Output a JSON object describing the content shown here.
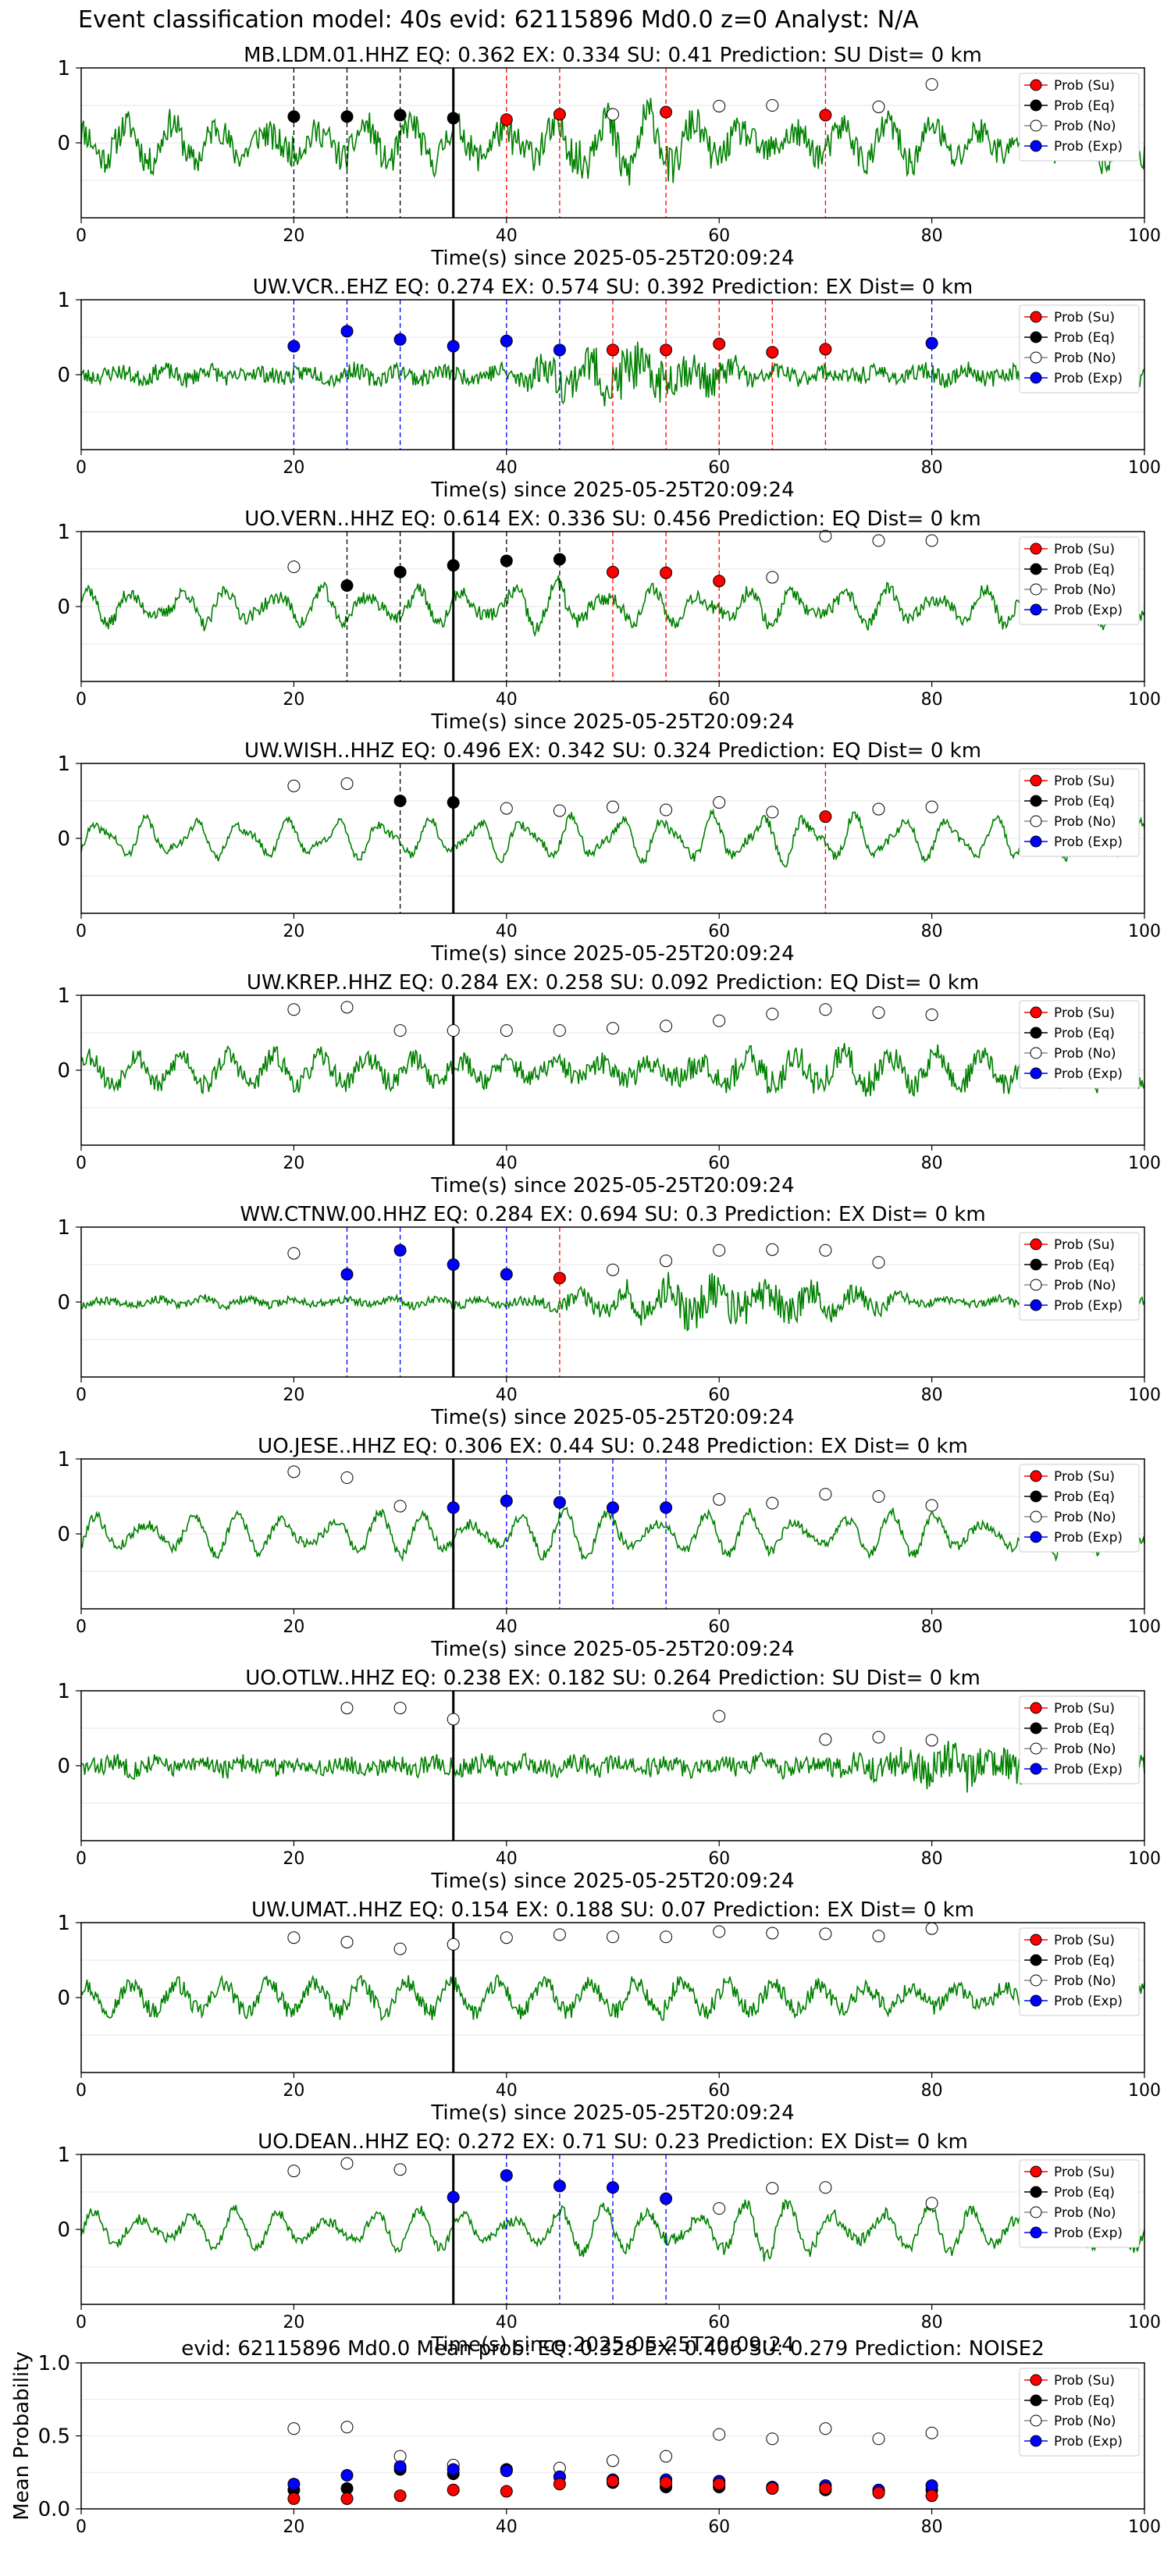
{
  "figure": {
    "title": "Event classification model: 40s evid: 62115896 Md0.0 z=0 Analyst: N/A"
  },
  "legend": [
    "Prob (Su)",
    "Prob (Eq)",
    "Prob (No)",
    "Prob (Exp)"
  ],
  "colors": {
    "su": "#ff0000",
    "eq": "#000000",
    "no": "#ffffff",
    "exp": "#0000ff",
    "waveform": "#008000"
  },
  "chart_data": [
    {
      "type": "line",
      "title": "MB.LDM.01.HHZ   EQ: 0.362  EX: 0.334  SU: 0.41   Prediction: SU    Dist= 0 km",
      "xlabel": "Time(s) since 2025-05-25T20:09:24",
      "xlim": [
        0,
        100
      ],
      "ylim": [
        -1,
        1
      ],
      "xticks": [
        "0",
        "20",
        "40",
        "60",
        "80",
        "100"
      ],
      "yticks": [
        "1",
        "0"
      ],
      "pick_time": 35,
      "amp": 0.6,
      "noise": 0.45,
      "burst": [
        38,
        60,
        1.6
      ],
      "seed": 11,
      "legend_loc": "upper right",
      "markers": [
        {
          "t": 20,
          "y": 0.35,
          "cls": "eq"
        },
        {
          "t": 25,
          "y": 0.35,
          "cls": "eq"
        },
        {
          "t": 30,
          "y": 0.37,
          "cls": "eq"
        },
        {
          "t": 35,
          "y": 0.33,
          "cls": "eq"
        },
        {
          "t": 40,
          "y": 0.31,
          "cls": "su"
        },
        {
          "t": 45,
          "y": 0.38,
          "cls": "su"
        },
        {
          "t": 50,
          "y": 0.38,
          "cls": "no"
        },
        {
          "t": 55,
          "y": 0.41,
          "cls": "su"
        },
        {
          "t": 60,
          "y": 0.49,
          "cls": "no"
        },
        {
          "t": 65,
          "y": 0.5,
          "cls": "no"
        },
        {
          "t": 70,
          "y": 0.37,
          "cls": "su"
        },
        {
          "t": 75,
          "y": 0.48,
          "cls": "no"
        },
        {
          "t": 80,
          "y": 0.78,
          "cls": "no"
        }
      ]
    },
    {
      "type": "line",
      "title": "UW.VCR..EHZ   EQ: 0.274  EX: 0.574  SU: 0.392   Prediction: EX    Dist= 0 km",
      "xlabel": "Time(s) since 2025-05-25T20:09:24",
      "xlim": [
        0,
        100
      ],
      "ylim": [
        -1,
        1
      ],
      "xticks": [
        "0",
        "20",
        "40",
        "60",
        "80",
        "100"
      ],
      "yticks": [
        "1",
        "0"
      ],
      "pick_time": 35,
      "amp": 0.15,
      "noise": 0.25,
      "burst": [
        38,
        65,
        3.2
      ],
      "seed": 23,
      "legend_loc": "upper right",
      "markers": [
        {
          "t": 20,
          "y": 0.38,
          "cls": "exp"
        },
        {
          "t": 25,
          "y": 0.58,
          "cls": "exp"
        },
        {
          "t": 30,
          "y": 0.47,
          "cls": "exp"
        },
        {
          "t": 35,
          "y": 0.38,
          "cls": "exp"
        },
        {
          "t": 40,
          "y": 0.45,
          "cls": "exp"
        },
        {
          "t": 45,
          "y": 0.33,
          "cls": "exp"
        },
        {
          "t": 50,
          "y": 0.33,
          "cls": "su"
        },
        {
          "t": 55,
          "y": 0.33,
          "cls": "su"
        },
        {
          "t": 60,
          "y": 0.41,
          "cls": "su"
        },
        {
          "t": 65,
          "y": 0.3,
          "cls": "su"
        },
        {
          "t": 70,
          "y": 0.34,
          "cls": "su"
        },
        {
          "t": 80,
          "y": 0.42,
          "cls": "exp"
        }
      ]
    },
    {
      "type": "line",
      "title": "UO.VERN..HHZ   EQ: 0.614  EX: 0.336  SU: 0.456   Prediction: EQ    Dist= 0 km",
      "xlabel": "Time(s) since 2025-05-25T20:09:24",
      "xlim": [
        0,
        100
      ],
      "ylim": [
        -1,
        1
      ],
      "xticks": [
        "0",
        "20",
        "40",
        "60",
        "80",
        "100"
      ],
      "yticks": [
        "1",
        "0"
      ],
      "pick_time": 35,
      "amp": 0.55,
      "noise": 0.2,
      "burst": [
        38,
        50,
        1.4
      ],
      "seed": 37,
      "legend_loc": "upper right",
      "markers": [
        {
          "t": 20,
          "y": 0.53,
          "cls": "no"
        },
        {
          "t": 25,
          "y": 0.28,
          "cls": "eq"
        },
        {
          "t": 30,
          "y": 0.46,
          "cls": "eq"
        },
        {
          "t": 35,
          "y": 0.55,
          "cls": "eq"
        },
        {
          "t": 40,
          "y": 0.61,
          "cls": "eq"
        },
        {
          "t": 45,
          "y": 0.63,
          "cls": "eq"
        },
        {
          "t": 50,
          "y": 0.46,
          "cls": "su"
        },
        {
          "t": 55,
          "y": 0.45,
          "cls": "su"
        },
        {
          "t": 60,
          "y": 0.34,
          "cls": "su"
        },
        {
          "t": 65,
          "y": 0.39,
          "cls": "no"
        },
        {
          "t": 70,
          "y": 0.94,
          "cls": "no"
        },
        {
          "t": 75,
          "y": 0.88,
          "cls": "no"
        },
        {
          "t": 80,
          "y": 0.88,
          "cls": "no"
        }
      ]
    },
    {
      "type": "line",
      "title": "UW.WISH..HHZ   EQ: 0.496  EX: 0.342  SU: 0.324   Prediction: EQ    Dist= 0 km",
      "xlabel": "Time(s) since 2025-05-25T20:09:24",
      "xlim": [
        0,
        100
      ],
      "ylim": [
        -1,
        1
      ],
      "xticks": [
        "0",
        "20",
        "40",
        "60",
        "80",
        "100"
      ],
      "yticks": [
        "1",
        "0"
      ],
      "pick_time": 35,
      "amp": 0.6,
      "noise": 0.12,
      "burst": [
        36,
        95,
        1.3
      ],
      "seed": 41,
      "legend_loc": "upper right",
      "markers": [
        {
          "t": 20,
          "y": 0.7,
          "cls": "no"
        },
        {
          "t": 25,
          "y": 0.73,
          "cls": "no"
        },
        {
          "t": 30,
          "y": 0.5,
          "cls": "eq"
        },
        {
          "t": 35,
          "y": 0.48,
          "cls": "eq"
        },
        {
          "t": 40,
          "y": 0.4,
          "cls": "no"
        },
        {
          "t": 45,
          "y": 0.37,
          "cls": "no"
        },
        {
          "t": 50,
          "y": 0.42,
          "cls": "no"
        },
        {
          "t": 55,
          "y": 0.38,
          "cls": "no"
        },
        {
          "t": 60,
          "y": 0.48,
          "cls": "no"
        },
        {
          "t": 65,
          "y": 0.35,
          "cls": "no"
        },
        {
          "t": 70,
          "y": 0.29,
          "cls": "su"
        },
        {
          "t": 75,
          "y": 0.39,
          "cls": "no"
        },
        {
          "t": 80,
          "y": 0.42,
          "cls": "no"
        }
      ]
    },
    {
      "type": "line",
      "title": "UW.KREP..HHZ   EQ: 0.284  EX: 0.258  SU: 0.092   Prediction: EQ    Dist= 0 km",
      "xlabel": "Time(s) since 2025-05-25T20:09:24",
      "xlim": [
        0,
        100
      ],
      "ylim": [
        -1,
        1
      ],
      "xticks": [
        "0",
        "20",
        "40",
        "60",
        "80",
        "100"
      ],
      "yticks": [
        "1",
        "0"
      ],
      "pick_time": 35,
      "amp": 0.45,
      "noise": 0.3,
      "burst": [
        45,
        90,
        1.5
      ],
      "seed": 53,
      "legend_loc": "upper right",
      "markers": [
        {
          "t": 20,
          "y": 0.81,
          "cls": "no"
        },
        {
          "t": 25,
          "y": 0.84,
          "cls": "no"
        },
        {
          "t": 30,
          "y": 0.53,
          "cls": "no"
        },
        {
          "t": 35,
          "y": 0.53,
          "cls": "no"
        },
        {
          "t": 40,
          "y": 0.53,
          "cls": "no"
        },
        {
          "t": 45,
          "y": 0.53,
          "cls": "no"
        },
        {
          "t": 50,
          "y": 0.56,
          "cls": "no"
        },
        {
          "t": 55,
          "y": 0.59,
          "cls": "no"
        },
        {
          "t": 60,
          "y": 0.66,
          "cls": "no"
        },
        {
          "t": 65,
          "y": 0.75,
          "cls": "no"
        },
        {
          "t": 70,
          "y": 0.81,
          "cls": "no"
        },
        {
          "t": 75,
          "y": 0.77,
          "cls": "no"
        },
        {
          "t": 80,
          "y": 0.74,
          "cls": "no"
        }
      ]
    },
    {
      "type": "line",
      "title": "WW.CTNW.00.HHZ   EQ: 0.284  EX: 0.694  SU: 0.3   Prediction: EX    Dist= 0 km",
      "xlabel": "Time(s) since 2025-05-25T20:09:24",
      "xlim": [
        0,
        100
      ],
      "ylim": [
        -1,
        1
      ],
      "xticks": [
        "0",
        "20",
        "40",
        "60",
        "80",
        "100"
      ],
      "yticks": [
        "1",
        "0"
      ],
      "pick_time": 35,
      "amp": 0.12,
      "noise": 0.12,
      "burst": [
        40,
        80,
        5.0
      ],
      "seed": 67,
      "legend_loc": "upper right",
      "markers": [
        {
          "t": 20,
          "y": 0.65,
          "cls": "no"
        },
        {
          "t": 25,
          "y": 0.37,
          "cls": "exp"
        },
        {
          "t": 30,
          "y": 0.69,
          "cls": "exp"
        },
        {
          "t": 35,
          "y": 0.5,
          "cls": "exp"
        },
        {
          "t": 40,
          "y": 0.37,
          "cls": "exp"
        },
        {
          "t": 45,
          "y": 0.32,
          "cls": "su"
        },
        {
          "t": 50,
          "y": 0.43,
          "cls": "no"
        },
        {
          "t": 55,
          "y": 0.55,
          "cls": "no"
        },
        {
          "t": 60,
          "y": 0.69,
          "cls": "no"
        },
        {
          "t": 65,
          "y": 0.7,
          "cls": "no"
        },
        {
          "t": 70,
          "y": 0.69,
          "cls": "no"
        },
        {
          "t": 75,
          "y": 0.53,
          "cls": "no"
        }
      ]
    },
    {
      "type": "line",
      "title": "UO.JESE..HHZ   EQ: 0.306  EX: 0.44  SU: 0.248   Prediction: EX    Dist= 0 km",
      "xlabel": "Time(s) since 2025-05-25T20:09:24",
      "xlim": [
        0,
        100
      ],
      "ylim": [
        -1,
        1
      ],
      "xticks": [
        "0",
        "20",
        "40",
        "60",
        "80",
        "100"
      ],
      "yticks": [
        "1",
        "0"
      ],
      "pick_time": 35,
      "amp": 0.65,
      "noise": 0.15,
      "burst": [
        40,
        60,
        1.2
      ],
      "seed": 79,
      "legend_loc": "upper right",
      "markers": [
        {
          "t": 20,
          "y": 0.83,
          "cls": "no"
        },
        {
          "t": 25,
          "y": 0.75,
          "cls": "no"
        },
        {
          "t": 30,
          "y": 0.37,
          "cls": "no"
        },
        {
          "t": 35,
          "y": 0.35,
          "cls": "exp"
        },
        {
          "t": 40,
          "y": 0.44,
          "cls": "exp"
        },
        {
          "t": 45,
          "y": 0.42,
          "cls": "exp"
        },
        {
          "t": 50,
          "y": 0.35,
          "cls": "exp"
        },
        {
          "t": 55,
          "y": 0.35,
          "cls": "exp"
        },
        {
          "t": 60,
          "y": 0.46,
          "cls": "no"
        },
        {
          "t": 65,
          "y": 0.41,
          "cls": "no"
        },
        {
          "t": 70,
          "y": 0.53,
          "cls": "no"
        },
        {
          "t": 75,
          "y": 0.5,
          "cls": "no"
        },
        {
          "t": 80,
          "y": 0.38,
          "cls": "no"
        }
      ]
    },
    {
      "type": "line",
      "title": "UO.OTLW..HHZ   EQ: 0.238  EX: 0.182  SU: 0.264   Prediction: SU    Dist= 0 km",
      "xlabel": "Time(s) since 2025-05-25T20:09:24",
      "xlim": [
        0,
        100
      ],
      "ylim": [
        -1,
        1
      ],
      "xticks": [
        "0",
        "20",
        "40",
        "60",
        "80",
        "100"
      ],
      "yticks": [
        "1",
        "0"
      ],
      "pick_time": 35,
      "amp": 0.12,
      "noise": 0.28,
      "burst": [
        70,
        95,
        2.2
      ],
      "seed": 83,
      "legend_loc": "upper right",
      "markers": [
        {
          "t": 25,
          "y": 0.77,
          "cls": "no"
        },
        {
          "t": 30,
          "y": 0.77,
          "cls": "no"
        },
        {
          "t": 35,
          "y": 0.62,
          "cls": "no"
        },
        {
          "t": 60,
          "y": 0.66,
          "cls": "no"
        },
        {
          "t": 70,
          "y": 0.35,
          "cls": "no"
        },
        {
          "t": 75,
          "y": 0.38,
          "cls": "no"
        },
        {
          "t": 80,
          "y": 0.34,
          "cls": "no"
        }
      ]
    },
    {
      "type": "line",
      "title": "UW.UMAT..HHZ   EQ: 0.154  EX: 0.188  SU: 0.07   Prediction: EX    Dist= 0 km",
      "xlabel": "Time(s) since 2025-05-25T20:09:24",
      "xlim": [
        0,
        100
      ],
      "ylim": [
        -1,
        1
      ],
      "xticks": [
        "0",
        "20",
        "40",
        "60",
        "80",
        "100"
      ],
      "yticks": [
        "1",
        "0"
      ],
      "pick_time": 35,
      "amp": 0.45,
      "noise": 0.25,
      "burst": [
        50,
        60,
        1.2
      ],
      "seed": 97,
      "legend_loc": "upper right",
      "markers": [
        {
          "t": 20,
          "y": 0.8,
          "cls": "no"
        },
        {
          "t": 25,
          "y": 0.74,
          "cls": "no"
        },
        {
          "t": 30,
          "y": 0.65,
          "cls": "no"
        },
        {
          "t": 35,
          "y": 0.71,
          "cls": "no"
        },
        {
          "t": 40,
          "y": 0.8,
          "cls": "no"
        },
        {
          "t": 45,
          "y": 0.84,
          "cls": "no"
        },
        {
          "t": 50,
          "y": 0.81,
          "cls": "no"
        },
        {
          "t": 55,
          "y": 0.81,
          "cls": "no"
        },
        {
          "t": 60,
          "y": 0.88,
          "cls": "no"
        },
        {
          "t": 65,
          "y": 0.86,
          "cls": "no"
        },
        {
          "t": 70,
          "y": 0.85,
          "cls": "no"
        },
        {
          "t": 75,
          "y": 0.82,
          "cls": "no"
        },
        {
          "t": 80,
          "y": 0.92,
          "cls": "no"
        }
      ]
    },
    {
      "type": "line",
      "title": "UO.DEAN..HHZ   EQ: 0.272  EX: 0.71  SU: 0.23   Prediction: EX    Dist= 0 km",
      "xlabel": "Time(s) since 2025-05-25T20:09:24",
      "xlim": [
        0,
        100
      ],
      "ylim": [
        -1,
        1
      ],
      "xticks": [
        "0",
        "20",
        "40",
        "60",
        "80",
        "100"
      ],
      "yticks": [
        "1",
        "0"
      ],
      "pick_time": 35,
      "amp": 0.6,
      "noise": 0.15,
      "burst": [
        40,
        90,
        1.4
      ],
      "seed": 101,
      "legend_loc": "upper right",
      "markers": [
        {
          "t": 20,
          "y": 0.78,
          "cls": "no"
        },
        {
          "t": 25,
          "y": 0.88,
          "cls": "no"
        },
        {
          "t": 30,
          "y": 0.8,
          "cls": "no"
        },
        {
          "t": 35,
          "y": 0.43,
          "cls": "exp"
        },
        {
          "t": 40,
          "y": 0.72,
          "cls": "exp"
        },
        {
          "t": 45,
          "y": 0.58,
          "cls": "exp"
        },
        {
          "t": 50,
          "y": 0.56,
          "cls": "exp"
        },
        {
          "t": 55,
          "y": 0.41,
          "cls": "exp"
        },
        {
          "t": 60,
          "y": 0.28,
          "cls": "no"
        },
        {
          "t": 65,
          "y": 0.55,
          "cls": "no"
        },
        {
          "t": 70,
          "y": 0.56,
          "cls": "no"
        },
        {
          "t": 80,
          "y": 0.35,
          "cls": "no"
        }
      ]
    },
    {
      "type": "scatter",
      "title": "evid: 62115896  Md0.0   Mean prob:   EQ: 0.328  EX: 0.406  SU: 0.279   Prediction: NOISE2",
      "ylabel": "Mean Probability",
      "xlim": [
        0,
        100
      ],
      "ylim": [
        0,
        1
      ],
      "xticks": [
        "0",
        "20",
        "40",
        "60",
        "80",
        "100"
      ],
      "yticks": [
        "1.0",
        "0.5",
        "0.0"
      ],
      "legend_loc": "upper right",
      "x": [
        20,
        25,
        30,
        35,
        40,
        45,
        50,
        55,
        60,
        65,
        70,
        75,
        80
      ],
      "series": [
        {
          "cls": "no",
          "values": [
            0.55,
            0.56,
            0.36,
            0.3,
            0.27,
            0.28,
            0.33,
            0.36,
            0.51,
            0.48,
            0.55,
            0.48,
            0.52
          ]
        },
        {
          "cls": "eq",
          "values": [
            0.13,
            0.14,
            0.27,
            0.24,
            0.27,
            0.22,
            0.18,
            0.15,
            0.15,
            0.14,
            0.13,
            0.12,
            0.13
          ]
        },
        {
          "cls": "exp",
          "values": [
            0.17,
            0.23,
            0.29,
            0.27,
            0.26,
            0.22,
            0.2,
            0.2,
            0.19,
            0.15,
            0.16,
            0.13,
            0.16
          ]
        },
        {
          "cls": "su",
          "values": [
            0.07,
            0.07,
            0.09,
            0.13,
            0.12,
            0.17,
            0.19,
            0.18,
            0.17,
            0.14,
            0.14,
            0.11,
            0.09
          ]
        }
      ]
    }
  ]
}
